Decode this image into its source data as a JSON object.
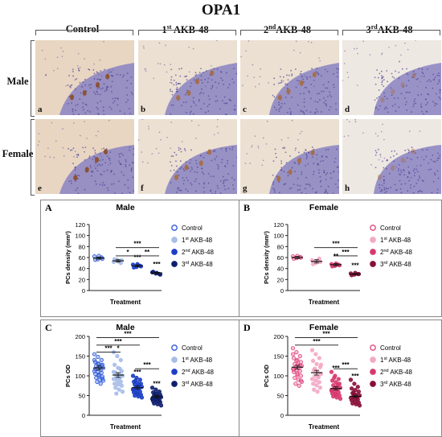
{
  "figure": {
    "title": "OPA1",
    "columns": [
      {
        "base": "Control",
        "sup": ""
      },
      {
        "base": "AKB-48",
        "sup": "st",
        "num": "1"
      },
      {
        "base": "AKB-48",
        "sup": "nd",
        "num": "2"
      },
      {
        "base": "AKB-48",
        "sup": "rd",
        "num": "3"
      }
    ],
    "rows": [
      "Male",
      "Female"
    ],
    "micro_labels": [
      "a",
      "b",
      "c",
      "d",
      "e",
      "f",
      "g",
      "h"
    ]
  },
  "colors": {
    "control_male": "#2c58d6",
    "akb1_male": "#a9bde8",
    "akb2_male": "#1d3fc4",
    "akb3_male": "#0f1f6e",
    "control_female": "#e0477f",
    "akb1_female": "#f4a9c5",
    "akb2_female": "#d63a70",
    "akb3_female": "#8a0f3a"
  },
  "chart_data": [
    {
      "panel": "A",
      "type": "scatter",
      "title": "Male",
      "xlabel": "Treatment",
      "ylabel": "PCs density (mm²)",
      "ylim": [
        0,
        120
      ],
      "yticks": [
        0,
        20,
        40,
        60,
        80,
        100,
        120
      ],
      "categories": [
        "Control",
        "1st AKB-48",
        "2nd AKB-48",
        "3rd AKB-48"
      ],
      "legend": [
        {
          "num": "",
          "sup": "",
          "text": "Control"
        },
        {
          "num": "1",
          "sup": "st",
          "text": "AKB-48"
        },
        {
          "num": "2",
          "sup": "nd",
          "text": "AKB-48"
        },
        {
          "num": "3",
          "sup": "rd",
          "text": "AKB-48"
        }
      ],
      "series": [
        {
          "mean": 59,
          "sem": 2,
          "points": [
            62,
            57,
            60,
            56,
            63,
            58
          ]
        },
        {
          "mean": 54,
          "sem": 2,
          "points": [
            52,
            56,
            50,
            57,
            53,
            55
          ]
        },
        {
          "mean": 45,
          "sem": 2,
          "points": [
            47,
            43,
            45,
            42,
            48,
            44
          ]
        },
        {
          "mean": 32,
          "sem": 1,
          "points": [
            33,
            31,
            30,
            34,
            32,
            29
          ]
        }
      ],
      "point_stars": [
        "",
        "",
        "***",
        "***"
      ],
      "brackets": [
        {
          "from": 1,
          "to": 3,
          "y": 78,
          "stars": "***"
        },
        {
          "from": 1,
          "to": 2,
          "y": 63,
          "stars": "*"
        },
        {
          "from": 2,
          "to": 3,
          "y": 63,
          "stars": "**"
        }
      ]
    },
    {
      "panel": "B",
      "type": "scatter",
      "title": "Female",
      "xlabel": "Treatment",
      "ylabel": "PCs density (mm²)",
      "ylim": [
        0,
        120
      ],
      "yticks": [
        0,
        20,
        40,
        60,
        80,
        100,
        120
      ],
      "categories": [
        "Control",
        "1st AKB-48",
        "2nd AKB-48",
        "3rd AKB-48"
      ],
      "legend": [
        {
          "num": "",
          "sup": "",
          "text": "Control"
        },
        {
          "num": "1",
          "sup": "st",
          "text": "AKB-48"
        },
        {
          "num": "2",
          "sup": "nd",
          "text": "AKB-48"
        },
        {
          "num": "3",
          "sup": "rd",
          "text": "AKB-48"
        }
      ],
      "series": [
        {
          "mean": 60,
          "sem": 2,
          "points": [
            62,
            59,
            61,
            58,
            63,
            60
          ]
        },
        {
          "mean": 53,
          "sem": 3,
          "points": [
            55,
            50,
            58,
            48,
            54,
            52
          ]
        },
        {
          "mean": 47,
          "sem": 2,
          "points": [
            48,
            45,
            47,
            44,
            49,
            46
          ]
        },
        {
          "mean": 30,
          "sem": 1,
          "points": [
            31,
            29,
            30,
            28,
            32,
            30
          ]
        }
      ],
      "point_stars": [
        "",
        "",
        "**",
        "***"
      ],
      "brackets": [
        {
          "from": 1,
          "to": 3,
          "y": 78,
          "stars": "***"
        },
        {
          "from": 2,
          "to": 3,
          "y": 63,
          "stars": "***"
        }
      ]
    },
    {
      "panel": "C",
      "type": "scatter",
      "title": "Male",
      "xlabel": "Treatment",
      "ylabel": "PCs OD",
      "ylim": [
        0,
        200
      ],
      "yticks": [
        0,
        50,
        100,
        150,
        200
      ],
      "categories": [
        "Control",
        "1st AKB-48",
        "2nd AKB-48",
        "3rd AKB-48"
      ],
      "legend": [
        {
          "num": "",
          "sup": "",
          "text": "Control"
        },
        {
          "num": "1",
          "sup": "st",
          "text": "AKB-48"
        },
        {
          "num": "2",
          "sup": "nd",
          "text": "AKB-48"
        },
        {
          "num": "3",
          "sup": "rd",
          "text": "AKB-48"
        }
      ],
      "series": [
        {
          "mean": 120,
          "sem": 5,
          "points": [
            155,
            148,
            140,
            135,
            130,
            128,
            125,
            122,
            120,
            118,
            115,
            112,
            110,
            108,
            105,
            100,
            98,
            95,
            90,
            88,
            85,
            80,
            140,
            132,
            126,
            117,
            103,
            93
          ]
        },
        {
          "mean": 102,
          "sem": 6,
          "points": [
            160,
            150,
            140,
            128,
            120,
            112,
            108,
            104,
            100,
            98,
            95,
            92,
            88,
            85,
            80,
            78,
            75,
            70,
            65,
            60,
            55,
            118,
            110,
            102
          ]
        },
        {
          "mean": 70,
          "sem": 4,
          "points": [
            100,
            95,
            90,
            85,
            82,
            80,
            78,
            75,
            72,
            70,
            68,
            65,
            62,
            60,
            58,
            55,
            52,
            50,
            48,
            45,
            88,
            76,
            66,
            56
          ]
        },
        {
          "mean": 47,
          "sem": 3,
          "points": [
            70,
            65,
            60,
            58,
            55,
            52,
            50,
            48,
            46,
            45,
            43,
            42,
            40,
            38,
            36,
            35,
            33,
            30,
            28,
            25,
            54,
            47,
            41
          ]
        }
      ],
      "point_stars": [
        "",
        "*",
        "***",
        "***"
      ],
      "brackets": [
        {
          "from": 0,
          "to": 3,
          "y": 197,
          "stars": "***"
        },
        {
          "from": 0,
          "to": 2,
          "y": 178,
          "stars": "***"
        },
        {
          "from": 0,
          "to": 1,
          "y": 160,
          "stars": "***"
        },
        {
          "from": 2,
          "to": 3,
          "y": 118,
          "stars": "***"
        }
      ]
    },
    {
      "panel": "D",
      "type": "scatter",
      "title": "Female",
      "xlabel": "Treatment",
      "ylabel": "PCs OD",
      "ylim": [
        0,
        200
      ],
      "yticks": [
        0,
        50,
        100,
        150,
        200
      ],
      "categories": [
        "Control",
        "1st AKB-48",
        "2nd AKB-48",
        "3rd AKB-48"
      ],
      "legend": [
        {
          "num": "",
          "sup": "",
          "text": "Control"
        },
        {
          "num": "1",
          "sup": "st",
          "text": "AKB-48"
        },
        {
          "num": "2",
          "sup": "nd",
          "text": "AKB-48"
        },
        {
          "num": "3",
          "sup": "rd",
          "text": "AKB-48"
        }
      ],
      "series": [
        {
          "mean": 122,
          "sem": 5,
          "points": [
            170,
            160,
            150,
            145,
            140,
            135,
            130,
            128,
            125,
            122,
            120,
            118,
            115,
            112,
            110,
            105,
            100,
            95,
            90,
            85,
            80,
            75,
            155,
            138,
            126,
            116,
            102,
            88
          ]
        },
        {
          "mean": 108,
          "sem": 6,
          "points": [
            165,
            155,
            145,
            138,
            130,
            122,
            115,
            110,
            105,
            100,
            96,
            92,
            88,
            84,
            80,
            76,
            70,
            65,
            60,
            128,
            118,
            98
          ]
        },
        {
          "mean": 68,
          "sem": 4,
          "points": [
            110,
            100,
            92,
            88,
            84,
            80,
            76,
            72,
            70,
            68,
            65,
            62,
            60,
            58,
            55,
            52,
            50,
            48,
            45,
            42,
            95,
            78,
            64,
            54
          ]
        },
        {
          "mean": 48,
          "sem": 3,
          "points": [
            90,
            80,
            72,
            68,
            64,
            60,
            56,
            52,
            50,
            48,
            46,
            44,
            42,
            40,
            38,
            35,
            32,
            30,
            28,
            25,
            58,
            45
          ]
        }
      ],
      "point_stars": [
        "",
        "",
        "***",
        "***"
      ],
      "brackets": [
        {
          "from": 0,
          "to": 3,
          "y": 197,
          "stars": "***"
        },
        {
          "from": 0,
          "to": 2,
          "y": 178,
          "stars": "***"
        },
        {
          "from": 2,
          "to": 3,
          "y": 118,
          "stars": "***"
        }
      ]
    }
  ]
}
